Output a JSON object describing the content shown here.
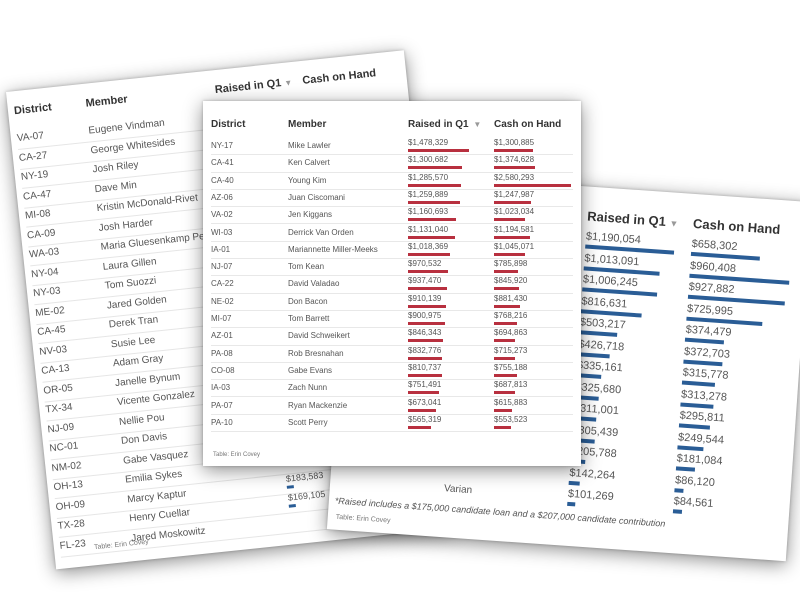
{
  "left_table": {
    "headers": {
      "district": "District",
      "member": "Member",
      "raised": "Raised in Q1",
      "cash": "Cash on Hand"
    },
    "credit": "Table: Erin Covey",
    "rows": [
      {
        "district": "VA-07",
        "member": "Eugene Vindman",
        "raised": "",
        "cash": ""
      },
      {
        "district": "CA-27",
        "member": "George Whitesides",
        "raised": "",
        "cash": ""
      },
      {
        "district": "NY-19",
        "member": "Josh Riley",
        "raised": "",
        "cash": ""
      },
      {
        "district": "CA-47",
        "member": "Dave Min",
        "raised": "",
        "cash": ""
      },
      {
        "district": "MI-08",
        "member": "Kristin McDonald-Rivet",
        "raised": "",
        "cash": ""
      },
      {
        "district": "CA-09",
        "member": "Josh Harder",
        "raised": "",
        "cash": ""
      },
      {
        "district": "WA-03",
        "member": "Maria Gluesenkamp Perez",
        "raised": "",
        "cash": ""
      },
      {
        "district": "NY-04",
        "member": "Laura Gillen",
        "raised": "",
        "cash": ""
      },
      {
        "district": "NY-03",
        "member": "Tom Suozzi",
        "raised": "",
        "cash": ""
      },
      {
        "district": "ME-02",
        "member": "Jared Golden",
        "raised": "",
        "cash": ""
      },
      {
        "district": "CA-45",
        "member": "Derek Tran",
        "raised": "",
        "cash": ""
      },
      {
        "district": "NV-03",
        "member": "Susie Lee",
        "raised": "",
        "cash": ""
      },
      {
        "district": "CA-13",
        "member": "Adam Gray",
        "raised": "",
        "cash": ""
      },
      {
        "district": "OR-05",
        "member": "Janelle Bynum",
        "raised": "",
        "cash": ""
      },
      {
        "district": "TX-34",
        "member": "Vicente Gonzalez",
        "raised": "",
        "cash": ""
      },
      {
        "district": "NJ-09",
        "member": "Nellie Pou",
        "raised": "",
        "cash": ""
      },
      {
        "district": "NC-01",
        "member": "Don Davis",
        "raised": "",
        "cash": ""
      },
      {
        "district": "NM-02",
        "member": "Gabe Vasquez",
        "raised": "",
        "cash": ""
      },
      {
        "district": "OH-13",
        "member": "Emilia Sykes",
        "raised": "",
        "cash": ""
      },
      {
        "district": "OH-09",
        "member": "Marcy Kaptur",
        "raised": "$183,583",
        "cash": "$1"
      },
      {
        "district": "TX-28",
        "member": "Henry Cuellar",
        "raised": "$169,105",
        "cash": "$"
      },
      {
        "district": "FL-23",
        "member": "Jared Moskowitz",
        "raised": "",
        "cash": ""
      }
    ]
  },
  "right_table": {
    "headers": {
      "raised": "Raised in Q1",
      "cash": "Cash on Hand"
    },
    "note": "*Raised includes a $175,000 candidate loan and a $207,000 candidate contribution",
    "credit": "Table: Erin Covey",
    "partial_member": "Varian",
    "rows": [
      {
        "raised": "$1,190,054",
        "cash": "$658,302"
      },
      {
        "raised": "$1,013,091",
        "cash": "$960,408"
      },
      {
        "raised": "$1,006,245",
        "cash": "$927,882"
      },
      {
        "raised": "$816,631",
        "cash": "$725,995"
      },
      {
        "raised": "$503,217",
        "cash": "$374,479"
      },
      {
        "raised": "$426,718",
        "cash": "$372,703"
      },
      {
        "raised": "$335,161",
        "cash": "$315,778"
      },
      {
        "raised": "$325,680",
        "cash": "$313,278"
      },
      {
        "raised": "$311,001",
        "cash": "$295,811"
      },
      {
        "raised": "$305,439",
        "cash": "$249,544"
      },
      {
        "raised": "$205,788",
        "cash": "$181,084"
      },
      {
        "raised": "$142,264",
        "cash": "$86,120"
      },
      {
        "raised": "$101,269",
        "cash": "$84,561"
      }
    ]
  },
  "center_table": {
    "headers": {
      "district": "District",
      "member": "Member",
      "raised": "Raised in Q1",
      "cash": "Cash on Hand"
    },
    "sort_icon": "▼",
    "credit": "Table: Erin Covey",
    "rows": [
      {
        "district": "NY-17",
        "member": "Mike Lawler",
        "raised": "$1,478,329",
        "cash": "$1,300,885"
      },
      {
        "district": "CA-41",
        "member": "Ken Calvert",
        "raised": "$1,300,682",
        "cash": "$1,374,628"
      },
      {
        "district": "CA-40",
        "member": "Young Kim",
        "raised": "$1,285,570",
        "cash": "$2,580,293"
      },
      {
        "district": "AZ-06",
        "member": "Juan Ciscomani",
        "raised": "$1,259,889",
        "cash": "$1,247,987"
      },
      {
        "district": "VA-02",
        "member": "Jen Kiggans",
        "raised": "$1,160,693",
        "cash": "$1,023,034"
      },
      {
        "district": "WI-03",
        "member": "Derrick Van Orden",
        "raised": "$1,131,040",
        "cash": "$1,194,581"
      },
      {
        "district": "IA-01",
        "member": "Mariannette Miller-Meeks",
        "raised": "$1,018,369",
        "cash": "$1,045,071"
      },
      {
        "district": "NJ-07",
        "member": "Tom Kean",
        "raised": "$970,532",
        "cash": "$785,898"
      },
      {
        "district": "CA-22",
        "member": "David Valadao",
        "raised": "$937,470",
        "cash": "$845,920"
      },
      {
        "district": "NE-02",
        "member": "Don Bacon",
        "raised": "$910,139",
        "cash": "$881,430"
      },
      {
        "district": "MI-07",
        "member": "Tom Barrett",
        "raised": "$900,975",
        "cash": "$768,216"
      },
      {
        "district": "AZ-01",
        "member": "David Schweikert",
        "raised": "$846,343",
        "cash": "$694,863"
      },
      {
        "district": "PA-08",
        "member": "Rob Bresnahan",
        "raised": "$832,776",
        "cash": "$715,273"
      },
      {
        "district": "CO-08",
        "member": "Gabe Evans",
        "raised": "$810,737",
        "cash": "$755,188"
      },
      {
        "district": "IA-03",
        "member": "Zach Nunn",
        "raised": "$751,491",
        "cash": "$687,813"
      },
      {
        "district": "PA-07",
        "member": "Ryan Mackenzie",
        "raised": "$673,041",
        "cash": "$615,883"
      },
      {
        "district": "PA-10",
        "member": "Scott Perry",
        "raised": "$565,319",
        "cash": "$553,523"
      }
    ]
  },
  "colors": {
    "red_bar": "#b8303f",
    "blue_bar": "#2a5d96"
  }
}
